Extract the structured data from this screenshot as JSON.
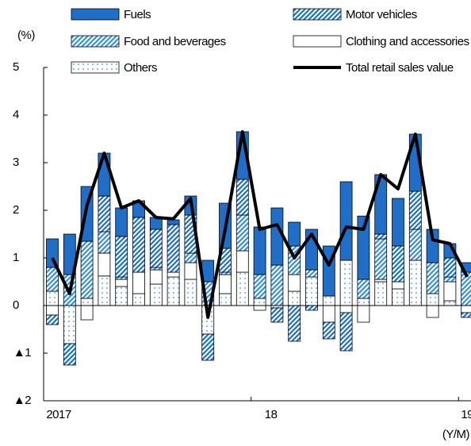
{
  "chart_data": {
    "type": "stacked_bar_line",
    "y_label": "(%)",
    "x_label": "(Y/M)",
    "categories": [
      "2017",
      null,
      null,
      null,
      null,
      null,
      null,
      null,
      null,
      null,
      null,
      null,
      "18",
      null,
      null,
      null,
      null,
      null,
      null,
      null,
      null,
      null,
      null,
      null,
      "19"
    ],
    "series": [
      {
        "name": "Fuels",
        "color": "#1f6fc8",
        "pattern": "solid",
        "values": [
          0.6,
          0.85,
          1.15,
          0.9,
          0.6,
          0.35,
          0.25,
          0.1,
          0.4,
          0.45,
          0.95,
          1.0,
          1.0,
          1.2,
          0.5,
          0.85,
          1.05,
          1.65,
          1.33,
          1.25,
          1.0,
          1.2,
          0.7,
          0.3,
          0.2
        ]
      },
      {
        "name": "Motor vehicles",
        "color": "#1f6fc8",
        "pattern": "hatch",
        "values": [
          -0.2,
          -0.45,
          0,
          0.75,
          0.85,
          1.15,
          0.8,
          1.0,
          0.8,
          -0.55,
          0.5,
          0.75,
          0,
          -0.3,
          -0.75,
          -0.1,
          -0.35,
          -0.8,
          0,
          0.1,
          0.75,
          0.8,
          0,
          0.4,
          -0.1
        ]
      },
      {
        "name": "Food and beverages",
        "color": "#3a8fe0",
        "pattern": "hatch",
        "values": [
          0.5,
          0.65,
          1.2,
          0.45,
          0.05,
          0,
          0.05,
          0,
          0.2,
          0.5,
          0.05,
          0.75,
          0.5,
          0.85,
          0.6,
          0.15,
          0,
          0,
          0.4,
          0.85,
          0,
          0.65,
          0.65,
          0.1,
          0.7
        ]
      },
      {
        "name": "Clothing and accessories",
        "color": "#ffffff",
        "pattern": "none",
        "values": [
          -0.2,
          0,
          -0.3,
          0.48,
          0.15,
          0.45,
          0.3,
          0.1,
          0.35,
          0,
          0.4,
          0.45,
          -0.1,
          0,
          0.35,
          0,
          -0.35,
          -0.15,
          -0.35,
          0.05,
          0.15,
          0,
          -0.25,
          0.4,
          -0.15
        ]
      },
      {
        "name": "Others",
        "color": "#3a8fe0",
        "pattern": "dots",
        "values": [
          0.3,
          -0.8,
          0.15,
          0.62,
          0.4,
          0.25,
          0.45,
          0.6,
          0.55,
          -0.6,
          0.25,
          0.7,
          0.15,
          -0.05,
          0.3,
          0.6,
          0.2,
          0.95,
          0.15,
          0.5,
          0.35,
          0.95,
          0.25,
          0.1,
          0
        ]
      }
    ],
    "line": {
      "name": "Total retail sales value",
      "color": "#000000",
      "values": [
        1.0,
        0.25,
        2.1,
        3.2,
        2.05,
        2.2,
        1.85,
        1.82,
        2.25,
        -0.25,
        1.6,
        3.65,
        1.6,
        1.7,
        1.0,
        1.5,
        0.85,
        1.65,
        1.6,
        2.75,
        2.45,
        3.6,
        1.38,
        1.3,
        0.6
      ]
    },
    "ylim": [
      -2,
      5
    ],
    "yticks": [
      {
        "value": -2,
        "label": "▲2"
      },
      {
        "value": -1,
        "label": "▲1"
      },
      0,
      1,
      2,
      3,
      4,
      5
    ]
  }
}
